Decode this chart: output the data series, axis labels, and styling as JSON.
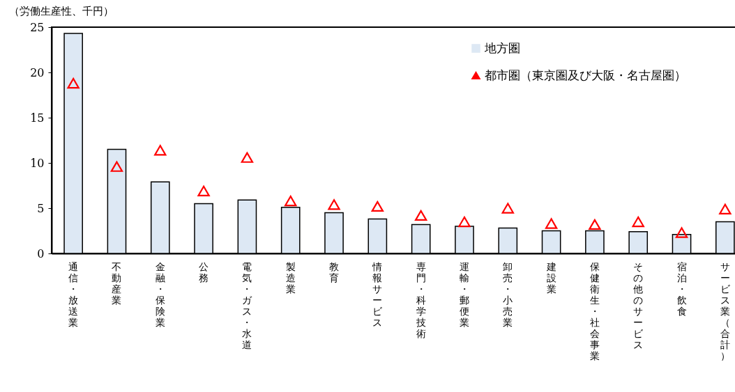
{
  "chart_data": {
    "type": "bar",
    "ylabel": "（労働生産性、千円）",
    "categories": [
      "通信・放送業",
      "不動産業",
      "金融・保険業",
      "公務",
      "電気・ガス・水道",
      "製造業",
      "教育",
      "情報サービス",
      "専門・科学技術",
      "運輸・郵便業",
      "卸売・小売業",
      "建設業",
      "保健衛生・社会事業",
      "その他のサービス",
      "宿泊・飲食",
      "サービス業（合計）"
    ],
    "series": [
      {
        "name": "地方圏",
        "color": "#dde8f4",
        "values": [
          24.3,
          11.5,
          7.9,
          5.5,
          5.9,
          5.1,
          4.5,
          3.8,
          3.2,
          3.0,
          2.8,
          2.5,
          2.5,
          2.4,
          2.1,
          3.5
        ]
      },
      {
        "name": "都市圏（東京圏及び大阪・名古屋圏）",
        "type": "scatter",
        "marker": "triangle",
        "color": "#ff0000",
        "values": [
          18.8,
          9.6,
          11.4,
          6.9,
          10.6,
          5.8,
          5.4,
          5.2,
          4.2,
          3.5,
          5.0,
          3.3,
          3.2,
          3.5,
          2.3,
          4.9
        ]
      }
    ],
    "ylim": [
      0,
      25
    ],
    "yticks": [
      0,
      5,
      10,
      15,
      20,
      25
    ],
    "grid": false,
    "legend": "top right"
  }
}
